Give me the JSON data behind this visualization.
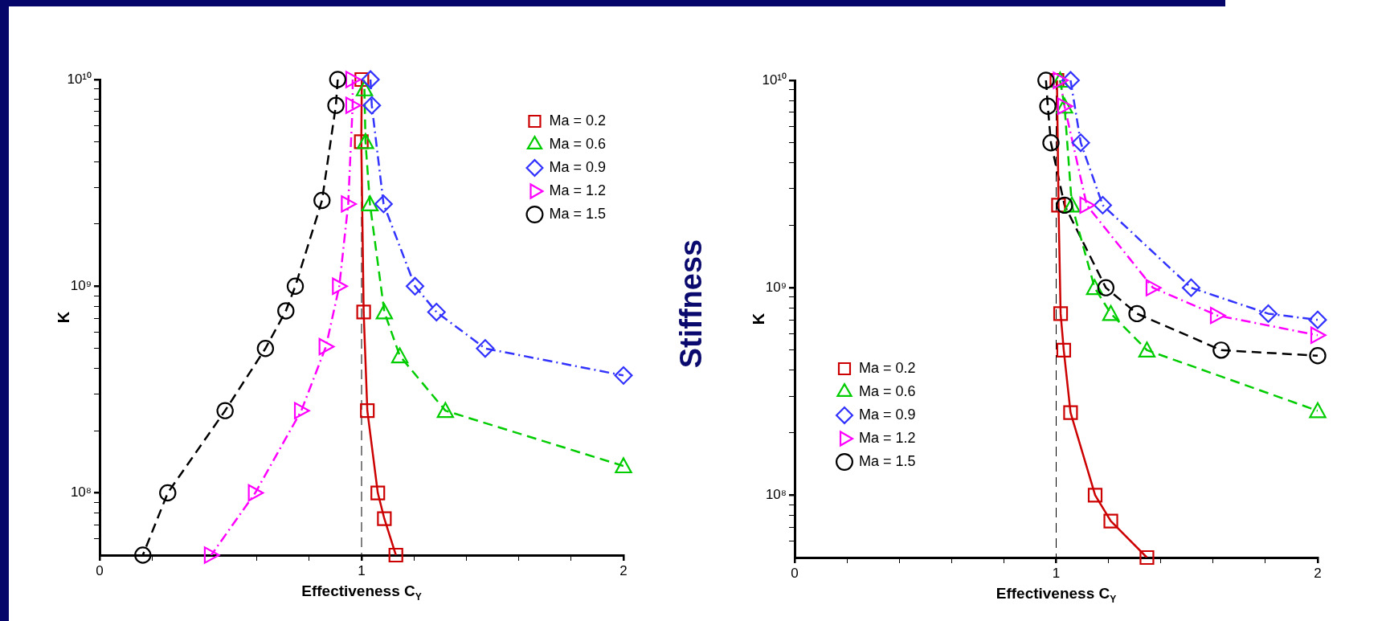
{
  "chart_data": [
    {
      "type": "line",
      "xlabel": "Effectiveness C$_{Y}$",
      "ylabel": "K",
      "log": "y",
      "legend": "top right",
      "grid": false,
      "xlim": [
        0,
        2
      ],
      "ylim": [
        50000000,
        10000000000
      ],
      "xticks": [
        0,
        {
          "value": 0.2,
          "label": null
        },
        {
          "value": 0.4,
          "label": null
        },
        {
          "value": 0.6,
          "label": null
        },
        {
          "value": 0.8,
          "label": null
        },
        1,
        {
          "value": 1.2,
          "label": null
        },
        {
          "value": 1.4,
          "label": null
        },
        {
          "value": 1.6,
          "label": null
        },
        {
          "value": 1.8,
          "label": null
        },
        2
      ],
      "yticks": [
        {
          "value": 60000000,
          "label": null
        },
        {
          "value": 70000000,
          "label": null
        },
        {
          "value": 80000000,
          "label": null
        },
        {
          "value": 90000000,
          "label": null
        },
        {
          "value": 100000000,
          "label": "10⁸"
        },
        {
          "value": 200000000,
          "label": null
        },
        {
          "value": 300000000,
          "label": null
        },
        {
          "value": 400000000,
          "label": null
        },
        {
          "value": 500000000,
          "label": null
        },
        {
          "value": 600000000,
          "label": null
        },
        {
          "value": 700000000,
          "label": null
        },
        {
          "value": 800000000,
          "label": null
        },
        {
          "value": 900000000,
          "label": null
        },
        {
          "value": 1000000000,
          "label": "10⁹"
        },
        {
          "value": 2000000000,
          "label": null
        },
        {
          "value": 3000000000,
          "label": null
        },
        {
          "value": 4000000000,
          "label": null
        },
        {
          "value": 5000000000,
          "label": null
        },
        {
          "value": 6000000000,
          "label": null
        },
        {
          "value": 7000000000,
          "label": null
        },
        {
          "value": 8000000000,
          "label": null
        },
        {
          "value": 9000000000,
          "label": null
        },
        {
          "value": 10000000000,
          "label": "10¹⁰"
        }
      ],
      "ref_lines": [
        {
          "axis": "x",
          "value": 1,
          "color": "#000000",
          "line_style": "dashed"
        }
      ],
      "series": [
        {
          "name": "Ma = 0.2",
          "color": "#cc0000",
          "marker": "square",
          "line_style": "solid",
          "x": [
            1.001,
            0.999,
            1.008,
            1.022,
            1.062,
            1.087,
            1.131
          ],
          "values": [
            10000000000,
            5000000000,
            750000000,
            250000000,
            100000000,
            75000000,
            50000000
          ]
        },
        {
          "name": "Ma = 0.6",
          "color": "#00cc00",
          "marker": "triangle",
          "line_style": "dashed",
          "x": [
            1.011,
            1.015,
            1.032,
            1.087,
            1.146,
            1.32,
            2.0
          ],
          "values": [
            9000000000,
            5000000000,
            2500000000,
            750000000,
            460000000,
            250000000,
            135000000
          ]
        },
        {
          "name": "Ma = 0.9",
          "color": "#3333ff",
          "marker": "diamond",
          "line_style": "dashdot",
          "x": [
            1.034,
            1.039,
            1.084,
            1.204,
            1.286,
            1.472,
            2.0
          ],
          "values": [
            10000000000,
            7500000000,
            2500000000,
            1000000000,
            750000000,
            500000000,
            370000000
          ]
        },
        {
          "name": "Ma = 1.2",
          "color": "#ff00ff",
          "marker": "triangle-right",
          "line_style": "dashdot",
          "x": [
            0.966,
            0.966,
            0.949,
            0.915,
            0.864,
            0.77,
            0.594,
            0.426
          ],
          "values": [
            10000000000,
            7500000000,
            2500000000,
            1000000000,
            510000000,
            250000000,
            100000000,
            50000000
          ]
        },
        {
          "name": "Ma = 1.5",
          "color": "#000000",
          "marker": "circle",
          "line_style": "dashed",
          "x": [
            0.909,
            0.902,
            0.849,
            0.747,
            0.711,
            0.633,
            0.479,
            0.26,
            0.165
          ],
          "values": [
            10000000000,
            7500000000,
            2600000000,
            1000000000,
            760000000,
            500000000,
            250000000,
            100000000,
            50000000
          ]
        }
      ]
    },
    {
      "type": "line",
      "title": "Stiffness",
      "xlabel": "Effectiveness C$_{Y}$",
      "ylabel": "K",
      "log": "y",
      "legend": "bottom left",
      "grid": false,
      "xlim": [
        0,
        2
      ],
      "ylim": [
        50000000,
        10000000000
      ],
      "xticks": [
        0,
        {
          "value": 0.2,
          "label": null
        },
        {
          "value": 0.4,
          "label": null
        },
        {
          "value": 0.6,
          "label": null
        },
        {
          "value": 0.8,
          "label": null
        },
        1,
        {
          "value": 1.2,
          "label": null
        },
        {
          "value": 1.4,
          "label": null
        },
        {
          "value": 1.6,
          "label": null
        },
        {
          "value": 1.8,
          "label": null
        },
        2
      ],
      "yticks": [
        {
          "value": 60000000,
          "label": null
        },
        {
          "value": 70000000,
          "label": null
        },
        {
          "value": 80000000,
          "label": null
        },
        {
          "value": 90000000,
          "label": null
        },
        {
          "value": 100000000,
          "label": "10⁸"
        },
        {
          "value": 200000000,
          "label": null
        },
        {
          "value": 300000000,
          "label": null
        },
        {
          "value": 400000000,
          "label": null
        },
        {
          "value": 500000000,
          "label": null
        },
        {
          "value": 600000000,
          "label": null
        },
        {
          "value": 700000000,
          "label": null
        },
        {
          "value": 800000000,
          "label": null
        },
        {
          "value": 900000000,
          "label": null
        },
        {
          "value": 1000000000,
          "label": "10⁹"
        },
        {
          "value": 2000000000,
          "label": null
        },
        {
          "value": 3000000000,
          "label": null
        },
        {
          "value": 4000000000,
          "label": null
        },
        {
          "value": 5000000000,
          "label": null
        },
        {
          "value": 6000000000,
          "label": null
        },
        {
          "value": 7000000000,
          "label": null
        },
        {
          "value": 8000000000,
          "label": null
        },
        {
          "value": 9000000000,
          "label": null
        },
        {
          "value": 10000000000,
          "label": "10¹⁰"
        }
      ],
      "ref_lines": [
        {
          "axis": "x",
          "value": 1,
          "color": "#000000",
          "line_style": "dashed"
        }
      ],
      "series": [
        {
          "name": "Ma = 0.2",
          "color": "#cc0000",
          "marker": "square",
          "line_style": "solid",
          "x": [
            1.003,
            1.009,
            1.017,
            1.029,
            1.055,
            1.149,
            1.209,
            1.347
          ],
          "values": [
            10000000000,
            2500000000,
            750000000,
            500000000,
            250000000,
            100000000,
            75000000,
            50000000
          ]
        },
        {
          "name": "Ma = 0.6",
          "color": "#00cc00",
          "marker": "triangle",
          "line_style": "dashed",
          "x": [
            1.015,
            1.032,
            1.06,
            1.147,
            1.209,
            1.347,
            2.0
          ],
          "values": [
            10000000000,
            7500000000,
            2500000000,
            1000000000,
            750000000,
            500000000,
            255000000
          ]
        },
        {
          "name": "Ma = 0.9",
          "color": "#3333ff",
          "marker": "diamond",
          "line_style": "dashdot",
          "x": [
            1.055,
            1.094,
            1.178,
            1.516,
            1.811,
            2.0
          ],
          "values": [
            10000000000,
            5000000000,
            2500000000,
            1000000000,
            750000000,
            700000000
          ]
        },
        {
          "name": "Ma = 1.2",
          "color": "#ff00ff",
          "marker": "triangle-right",
          "line_style": "dashdot",
          "x": [
            1.015,
            1.032,
            1.117,
            1.37,
            1.616,
            2.0
          ],
          "values": [
            10000000000,
            7500000000,
            2500000000,
            1000000000,
            735000000,
            590000000
          ]
        },
        {
          "name": "Ma = 1.5",
          "color": "#000000",
          "marker": "circle",
          "line_style": "dashed",
          "x": [
            0.961,
            0.968,
            0.98,
            1.032,
            1.19,
            1.309,
            1.631,
            2.0
          ],
          "values": [
            10000000000,
            7500000000,
            5000000000,
            2500000000,
            1000000000,
            750000000,
            500000000,
            470000000
          ]
        }
      ]
    }
  ]
}
